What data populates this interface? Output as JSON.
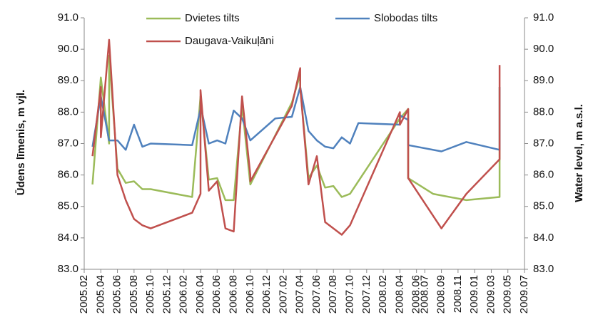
{
  "chart_data": {
    "type": "line",
    "ylabel": "Ūdens līmenis, m vjl.",
    "y2label": "Water level, m a.s.l.",
    "ylim": [
      83,
      91
    ],
    "yticks": [
      {
        "value": 83,
        "label": "83.0"
      },
      {
        "value": 84,
        "label": "84.0"
      },
      {
        "value": 85,
        "label": "85.0"
      },
      {
        "value": 86,
        "label": "86.0"
      },
      {
        "value": 87,
        "label": "87.0"
      },
      {
        "value": 88,
        "label": "88.0"
      },
      {
        "value": 89,
        "label": "89.0"
      },
      {
        "value": 90,
        "label": "90.0"
      },
      {
        "value": 91,
        "label": "91.0"
      }
    ],
    "y2lim": [
      83,
      91
    ],
    "y2ticks": [
      {
        "value": 83,
        "label": "83.0"
      },
      {
        "value": 84,
        "label": "84.0"
      },
      {
        "value": 85,
        "label": "85.0"
      },
      {
        "value": 86,
        "label": "86.0"
      },
      {
        "value": 87,
        "label": "87.0"
      },
      {
        "value": 88,
        "label": "88.0"
      },
      {
        "value": 89,
        "label": "89.0"
      },
      {
        "value": 90,
        "label": "90.0"
      },
      {
        "value": 91,
        "label": "91.0"
      }
    ],
    "xlim": [
      "2005.02",
      "2009.07"
    ],
    "xticks": [
      "2005.02",
      "2005.04",
      "2005.06",
      "2005.08",
      "2005.10",
      "2005.12",
      "2006.02",
      "2006.04",
      "2006.06",
      "2006.08",
      "2006.10",
      "2006.12",
      "2007.02",
      "2007.04",
      "2007.06",
      "2007.08",
      "2007.10",
      "2007.12",
      "2008.02",
      "2008.04",
      "2008.06",
      "2008.07",
      "2008.09",
      "2008.11",
      "2009.01",
      "2009.03",
      "2009.05",
      "2009.07"
    ],
    "grid": false,
    "series": [
      {
        "name": "Dvietes tilts",
        "color": "#9bbb59",
        "x": [
          "2005.03",
          "2005.04",
          "2005.05",
          "2005.05",
          "2005.06",
          "2005.07",
          "2005.08",
          "2005.09",
          "2005.10",
          "2006.03",
          "2006.04",
          "2006.05",
          "2006.06",
          "2006.07",
          "2006.08",
          "2006.09",
          "2006.10",
          "2007.03",
          "2007.04",
          "2007.04",
          "2007.05",
          "2007.06",
          "2007.07",
          "2007.08",
          "2007.09",
          "2007.10",
          "2008.04",
          "2008.05",
          "2008.05",
          "2008.08",
          "2008.12",
          "2009.04",
          "2009.04"
        ],
        "values": [
          85.7,
          89.1,
          87.0,
          89.8,
          86.2,
          85.75,
          85.8,
          85.55,
          85.55,
          85.3,
          88.5,
          85.85,
          85.9,
          85.2,
          85.2,
          88.2,
          85.7,
          88.3,
          89.2,
          88.8,
          85.9,
          86.3,
          85.6,
          85.65,
          85.3,
          85.4,
          87.8,
          88.1,
          85.9,
          85.4,
          85.2,
          85.3,
          88.8
        ]
      },
      {
        "name": "Slobodas tilts",
        "color": "#4f81bd",
        "x": [
          "2005.03",
          "2005.04",
          "2005.05",
          "2005.06",
          "2005.07",
          "2005.08",
          "2005.09",
          "2005.10",
          "2006.03",
          "2006.04",
          "2006.04",
          "2006.05",
          "2006.06",
          "2006.07",
          "2006.08",
          "2006.09",
          "2006.10",
          "2007.01",
          "2007.03",
          "2007.04",
          "2007.05",
          "2007.06",
          "2007.07",
          "2007.08",
          "2007.09",
          "2007.10",
          "2007.11",
          "2008.04",
          "2008.04",
          "2008.05",
          "2008.05",
          "2008.09",
          "2008.12",
          "2009.04",
          "2009.04"
        ],
        "values": [
          86.9,
          88.5,
          87.1,
          87.1,
          86.8,
          87.6,
          86.9,
          87.0,
          86.95,
          88.1,
          88.2,
          87.0,
          87.1,
          87.0,
          88.05,
          87.8,
          87.1,
          87.8,
          87.85,
          88.8,
          87.4,
          87.1,
          86.9,
          86.85,
          87.2,
          87.0,
          87.65,
          87.6,
          87.9,
          87.75,
          86.95,
          86.75,
          87.05,
          86.8,
          88.8
        ]
      },
      {
        "name": "Daugava-Vaikuļāni",
        "color": "#c0504d",
        "x": [
          "2005.03",
          "2005.04",
          "2005.04",
          "2005.05",
          "2005.06",
          "2005.07",
          "2005.08",
          "2005.09",
          "2005.10",
          "2006.03",
          "2006.04",
          "2006.04",
          "2006.05",
          "2006.06",
          "2006.07",
          "2006.08",
          "2006.09",
          "2006.10",
          "2006.10",
          "2007.03",
          "2007.04",
          "2007.04",
          "2007.05",
          "2007.06",
          "2007.07",
          "2007.09",
          "2007.10",
          "2008.04",
          "2008.04",
          "2008.05",
          "2008.05",
          "2008.09",
          "2008.12",
          "2009.04",
          "2009.04"
        ],
        "values": [
          86.6,
          88.8,
          87.2,
          90.3,
          86.0,
          85.2,
          84.6,
          84.4,
          84.3,
          84.8,
          85.4,
          88.7,
          85.5,
          85.8,
          84.3,
          84.2,
          88.5,
          86.0,
          85.8,
          88.2,
          89.4,
          88.8,
          85.7,
          86.6,
          84.5,
          84.1,
          84.4,
          88.0,
          87.6,
          88.1,
          85.9,
          84.3,
          85.4,
          86.5,
          89.5
        ]
      }
    ]
  }
}
